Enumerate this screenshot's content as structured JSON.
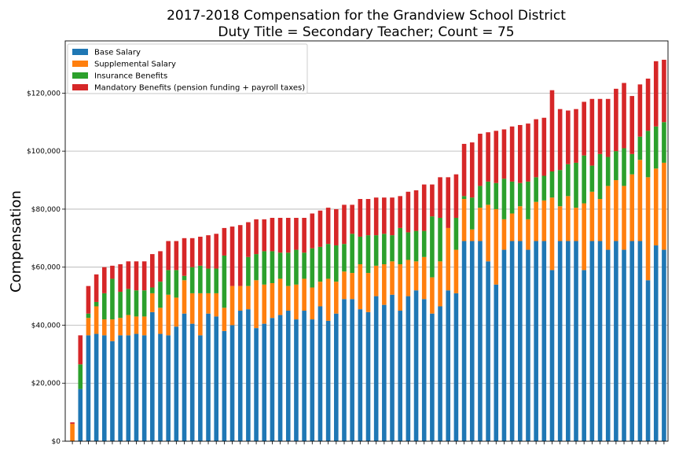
{
  "chart_data": {
    "type": "bar",
    "stacked": true,
    "title": "2017-2018 Compensation for the Grandview School District",
    "subtitle": "Duty Title = Secondary Teacher; Count = 75",
    "xlabel": "",
    "ylabel": "Compensation",
    "ylim": [
      0,
      138000
    ],
    "yticks": [
      0,
      20000,
      40000,
      60000,
      80000,
      100000,
      120000
    ],
    "ytick_labels": [
      "$0",
      "$20,000",
      "$40,000",
      "$60,000",
      "$80,000",
      "$100,000",
      "$120,000"
    ],
    "grid": "horizontal",
    "legend_position": "top-left",
    "series": [
      {
        "name": "Base Salary",
        "color": "#1f77b4",
        "values": [
          0,
          18000,
          36500,
          37000,
          36500,
          34500,
          36500,
          36500,
          37000,
          36500,
          44500,
          37000,
          36500,
          39500,
          44000,
          40500,
          36500,
          44000,
          43000,
          38000,
          40000,
          45000,
          45500,
          39000,
          40500,
          42500,
          43500,
          45000,
          42000,
          45000,
          42000,
          46500,
          41500,
          44000,
          49000,
          49000,
          45500,
          44500,
          50000,
          47000,
          50500,
          45000,
          50000,
          52000,
          49000,
          44000,
          46500,
          52000,
          51000,
          69000,
          69000,
          69000,
          62000,
          54000,
          66000,
          69000,
          69000,
          66000,
          69000,
          69000,
          59000,
          69000,
          69000,
          69000,
          59000,
          69000,
          69000,
          66000,
          69000,
          66000,
          69000,
          69000,
          55500,
          67500,
          66000
        ]
      },
      {
        "name": "Supplemental Salary",
        "color": "#ff7f0e",
        "values": [
          6000,
          0,
          6000,
          9500,
          5500,
          7500,
          6000,
          7000,
          6000,
          6500,
          6500,
          9000,
          14000,
          10000,
          11500,
          10500,
          14500,
          7000,
          8000,
          8000,
          13500,
          8500,
          8000,
          16500,
          13500,
          12000,
          12500,
          8500,
          12000,
          11000,
          11000,
          8500,
          14500,
          11000,
          9500,
          9000,
          15500,
          13500,
          10500,
          14000,
          11500,
          16000,
          12500,
          10000,
          14500,
          12500,
          15500,
          21500,
          15000,
          14500,
          4000,
          11500,
          19500,
          26000,
          10500,
          9500,
          12000,
          10500,
          13500,
          14000,
          25000,
          12000,
          15500,
          11500,
          23000,
          17000,
          14500,
          22000,
          21000,
          22000,
          23000,
          28000,
          35500,
          26500,
          30000
        ]
      },
      {
        "name": "Insurance Benefits",
        "color": "#2ca02c",
        "values": [
          0,
          8500,
          1500,
          1500,
          9000,
          14000,
          9000,
          9000,
          9000,
          9000,
          2000,
          9000,
          8500,
          9500,
          1500,
          9000,
          9500,
          8500,
          8500,
          18000,
          0,
          0,
          10000,
          9000,
          11500,
          11000,
          9000,
          11500,
          12000,
          9000,
          13500,
          12000,
          12000,
          12500,
          9500,
          13500,
          9500,
          13000,
          10500,
          10500,
          9000,
          12500,
          9500,
          10500,
          9000,
          21000,
          15000,
          0,
          11000,
          1000,
          11000,
          7500,
          8000,
          9000,
          14000,
          11000,
          8000,
          13000,
          8500,
          8500,
          9000,
          12500,
          11000,
          15500,
          16500,
          9000,
          15500,
          10000,
          10000,
          13000,
          7000,
          8000,
          16000,
          14500,
          14000
        ]
      },
      {
        "name": "Mandatory Benefits (pension funding + payroll taxes)",
        "color": "#d62728",
        "values": [
          500,
          10000,
          9500,
          9500,
          9000,
          4500,
          9500,
          9500,
          10000,
          10000,
          11500,
          10500,
          10000,
          10000,
          13000,
          10000,
          10000,
          11500,
          12000,
          9500,
          20500,
          21000,
          12000,
          12000,
          11000,
          11500,
          12000,
          12000,
          11000,
          12000,
          12000,
          12500,
          12500,
          12500,
          13500,
          10000,
          13000,
          12500,
          13000,
          12500,
          13000,
          11000,
          14000,
          14000,
          16000,
          11000,
          14000,
          17500,
          15000,
          18000,
          19000,
          18000,
          17000,
          18000,
          17000,
          19000,
          20000,
          20000,
          20000,
          20000,
          28000,
          21000,
          18500,
          18500,
          18500,
          23000,
          19000,
          20000,
          21500,
          22500,
          20000,
          18000,
          18000,
          22500,
          21500
        ]
      }
    ]
  }
}
